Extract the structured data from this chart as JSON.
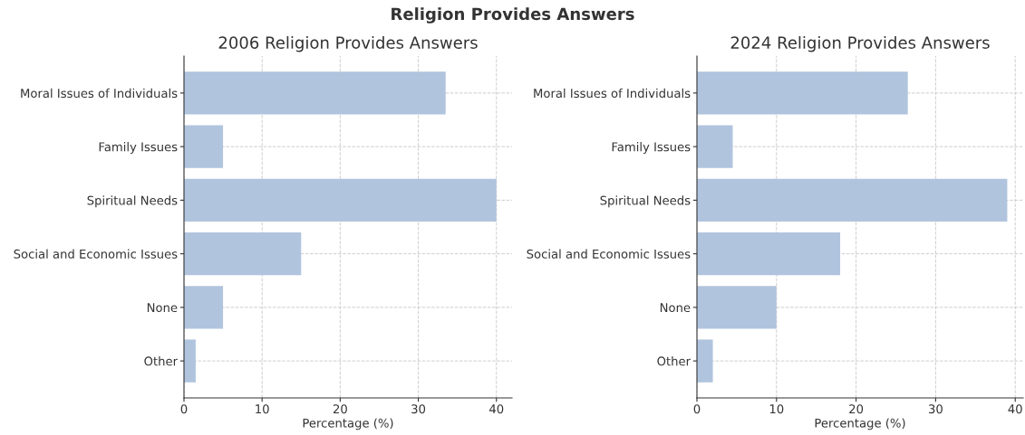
{
  "chart_data": [
    {
      "type": "bar",
      "orientation": "horizontal",
      "title": "2006 Religion Provides Answers",
      "xlabel": "Percentage (%)",
      "annotations": [
        "Religion Provides Answers"
      ],
      "categories": [
        "Moral Issues of Individuals",
        "Family Issues",
        "Spiritual Needs",
        "Social and Economic Issues",
        "None",
        "Other"
      ],
      "values": [
        33.5,
        5,
        40,
        15,
        5,
        1.5
      ],
      "color": "#b0c4de",
      "xlim": [
        0,
        42
      ],
      "xticks": [
        0,
        10,
        20,
        30,
        40
      ],
      "grid": true
    },
    {
      "type": "bar",
      "orientation": "horizontal",
      "title": "2024 Religion Provides Answers",
      "xlabel": "Percentage (%)",
      "categories": [
        "Moral Issues of Individuals",
        "Family Issues",
        "Spiritual Needs",
        "Social and Economic Issues",
        "None",
        "Other"
      ],
      "values": [
        26.5,
        4.5,
        39,
        18,
        10,
        2
      ],
      "color": "#b0c4de",
      "xlim": [
        0,
        41
      ],
      "xticks": [
        0,
        10,
        20,
        30,
        40
      ],
      "grid": true
    }
  ]
}
